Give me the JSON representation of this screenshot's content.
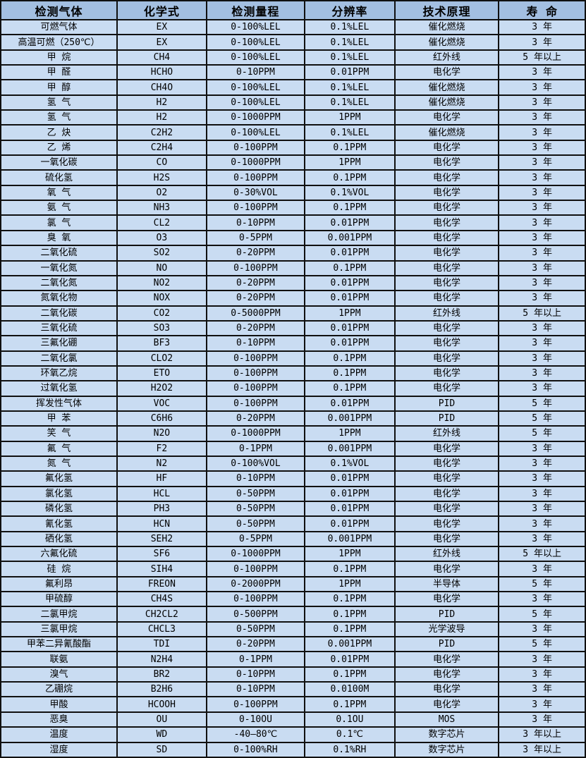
{
  "colors": {
    "header_bg": "#a3bfe1",
    "row_bg": "#c9dcf2",
    "border": "#101010"
  },
  "table": {
    "columns": [
      "检测气体",
      "化学式",
      "检测量程",
      "分辨率",
      "技术原理",
      "寿 命"
    ],
    "rows": [
      [
        "可燃气体",
        "EX",
        "0-100%LEL",
        "0.1%LEL",
        "催化燃烧",
        "3 年"
      ],
      [
        "高温可燃（250℃）",
        "EX",
        "0-100%LEL",
        "0.1%LEL",
        "催化燃烧",
        "3 年"
      ],
      [
        "甲 烷",
        "CH4",
        "0-100%LEL",
        "0.1%LEL",
        "红外线",
        "5 年以上"
      ],
      [
        "甲 醛",
        "HCHO",
        "0-10PPM",
        "0.01PPM",
        "电化学",
        "3 年"
      ],
      [
        "甲 醇",
        "CH4O",
        "0-100%LEL",
        "0.1%LEL",
        "催化燃烧",
        "3 年"
      ],
      [
        "氢 气",
        "H2",
        "0-100%LEL",
        "0.1%LEL",
        "催化燃烧",
        "3 年"
      ],
      [
        "氢 气",
        "H2",
        "0-1000PPM",
        "1PPM",
        "电化学",
        "3 年"
      ],
      [
        "乙 炔",
        "C2H2",
        "0-100%LEL",
        "0.1%LEL",
        "催化燃烧",
        "3 年"
      ],
      [
        "乙 烯",
        "C2H4",
        "0-100PPM",
        "0.1PPM",
        "电化学",
        "3 年"
      ],
      [
        "一氧化碳",
        "CO",
        "0-1000PPM",
        "1PPM",
        "电化学",
        "3 年"
      ],
      [
        "硫化氢",
        "H2S",
        "0-100PPM",
        "0.1PPM",
        "电化学",
        "3 年"
      ],
      [
        "氧 气",
        "O2",
        "0-30%VOL",
        "0.1%VOL",
        "电化学",
        "3 年"
      ],
      [
        "氨 气",
        "NH3",
        "0-100PPM",
        "0.1PPM",
        "电化学",
        "3 年"
      ],
      [
        "氯 气",
        "CL2",
        "0-10PPM",
        "0.01PPM",
        "电化学",
        "3 年"
      ],
      [
        "臭 氧",
        "O3",
        "0-5PPM",
        "0.001PPM",
        "电化学",
        "3 年"
      ],
      [
        "二氧化硫",
        "SO2",
        "0-20PPM",
        "0.01PPM",
        "电化学",
        "3 年"
      ],
      [
        "一氧化氮",
        "NO",
        "0-100PPM",
        "0.1PPM",
        "电化学",
        "3 年"
      ],
      [
        "二氧化氮",
        "NO2",
        "0-20PPM",
        "0.01PPM",
        "电化学",
        "3 年"
      ],
      [
        "氮氧化物",
        "NOX",
        "0-20PPM",
        "0.01PPM",
        "电化学",
        "3 年"
      ],
      [
        "二氧化碳",
        "CO2",
        "0-5000PPM",
        "1PPM",
        "红外线",
        "5 年以上"
      ],
      [
        "三氧化硫",
        "SO3",
        "0-20PPM",
        "0.01PPM",
        "电化学",
        "3 年"
      ],
      [
        "三氟化硼",
        "BF3",
        "0-10PPM",
        "0.01PPM",
        "电化学",
        "3 年"
      ],
      [
        "二氧化氯",
        "CLO2",
        "0-100PPM",
        "0.1PPM",
        "电化学",
        "3 年"
      ],
      [
        "环氧乙烷",
        "ETO",
        "0-100PPM",
        "0.1PPM",
        "电化学",
        "3 年"
      ],
      [
        "过氧化氢",
        "H2O2",
        "0-100PPM",
        "0.1PPM",
        "电化学",
        "3 年"
      ],
      [
        "挥发性气体",
        "VOC",
        "0-100PPM",
        "0.01PPM",
        "PID",
        "5 年"
      ],
      [
        "甲 苯",
        "C6H6",
        "0-20PPM",
        "0.001PPM",
        "PID",
        "5 年"
      ],
      [
        "笑 气",
        "N2O",
        "0-1000PPM",
        "1PPM",
        "红外线",
        "5 年"
      ],
      [
        "氟 气",
        "F2",
        "0-1PPM",
        "0.001PPM",
        "电化学",
        "3 年"
      ],
      [
        "氮 气",
        "N2",
        "0-100%VOL",
        "0.1%VOL",
        "电化学",
        "3 年"
      ],
      [
        "氟化氢",
        "HF",
        "0-10PPM",
        "0.01PPM",
        "电化学",
        "3 年"
      ],
      [
        "氯化氢",
        "HCL",
        "0-50PPM",
        "0.01PPM",
        "电化学",
        "3 年"
      ],
      [
        "磷化氢",
        "PH3",
        "0-50PPM",
        "0.01PPM",
        "电化学",
        "3 年"
      ],
      [
        "氰化氢",
        "HCN",
        "0-50PPM",
        "0.01PPM",
        "电化学",
        "3 年"
      ],
      [
        "硒化氢",
        "SEH2",
        "0-5PPM",
        "0.001PPM",
        "电化学",
        "3 年"
      ],
      [
        "六氟化硫",
        "SF6",
        "0-1000PPM",
        "1PPM",
        "红外线",
        "5 年以上"
      ],
      [
        "硅 烷",
        "SIH4",
        "0-100PPM",
        "0.1PPM",
        "电化学",
        "3 年"
      ],
      [
        "氟利昂",
        "FREON",
        "0-2000PPM",
        "1PPM",
        "半导体",
        "5 年"
      ],
      [
        "甲硫醇",
        "CH4S",
        "0-100PPM",
        "0.1PPM",
        "电化学",
        "3 年"
      ],
      [
        "二氯甲烷",
        "CH2CL2",
        "0-500PPM",
        "0.1PPM",
        "PID",
        "5 年"
      ],
      [
        "三氯甲烷",
        "CHCL3",
        "0-50PPM",
        "0.1PPM",
        "光学波导",
        "3 年"
      ],
      [
        "甲苯二异氰酸酯",
        "TDI",
        "0-20PPM",
        "0.001PPM",
        "PID",
        "5 年"
      ],
      [
        "联氨",
        "N2H4",
        "0-1PPM",
        "0.01PPM",
        "电化学",
        "3 年"
      ],
      [
        "溴气",
        "BR2",
        "0-10PPM",
        "0.1PPM",
        "电化学",
        "3 年"
      ],
      [
        "乙硼烷",
        "B2H6",
        "0-10PPM",
        "0.0100M",
        "电化学",
        "3 年"
      ],
      [
        "甲酸",
        "HCOOH",
        "0-100PPM",
        "0.1PPM",
        "电化学",
        "3 年"
      ],
      [
        "恶臭",
        "OU",
        "0-10OU",
        "0.1OU",
        "MOS",
        "3 年"
      ],
      [
        "温度",
        "WD",
        "-40—80℃",
        "0.1℃",
        "数字芯片",
        "3 年以上"
      ],
      [
        "湿度",
        "SD",
        "0-100%RH",
        "0.1%RH",
        "数字芯片",
        "3 年以上"
      ]
    ]
  }
}
